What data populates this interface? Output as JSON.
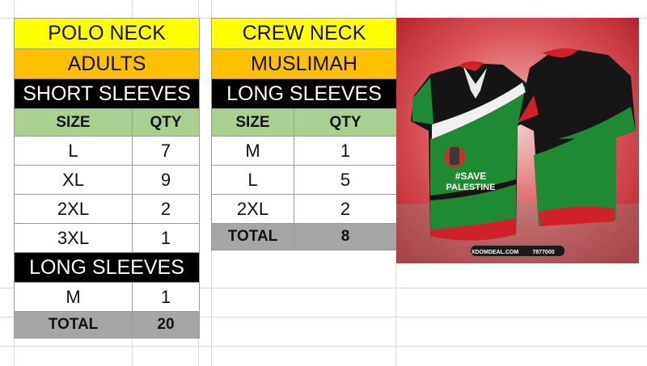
{
  "polo": {
    "neck": "POLO NECK",
    "group": "ADULTS",
    "short_sleeves": {
      "title": "SHORT SLEEVES",
      "header": {
        "size": "SIZE",
        "qty": "QTY"
      },
      "rows": [
        {
          "size": "L",
          "qty": "7"
        },
        {
          "size": "XL",
          "qty": "9"
        },
        {
          "size": "2XL",
          "qty": "2"
        },
        {
          "size": "3XL",
          "qty": "1"
        }
      ]
    },
    "long_sleeves": {
      "title": "LONG SLEEVES",
      "rows": [
        {
          "size": "M",
          "qty": "1"
        }
      ]
    },
    "total": {
      "label": "TOTAL",
      "qty": "20"
    }
  },
  "crew": {
    "neck": "CREW NECK",
    "group": "MUSLIMAH",
    "long_sleeves": {
      "title": "LONG SLEEVES",
      "header": {
        "size": "SIZE",
        "qty": "QTY"
      },
      "rows": [
        {
          "size": "M",
          "qty": "1"
        },
        {
          "size": "L",
          "qty": "5"
        },
        {
          "size": "2XL",
          "qty": "2"
        }
      ]
    },
    "total": {
      "label": "TOTAL",
      "qty": "8"
    }
  },
  "image": {
    "slogan_line1": "#SAVE",
    "slogan_line2": "PALESTINE",
    "footer_site": "XDOMDEAL.COM",
    "footer_phone": "7877000"
  },
  "colors": {
    "yellow": "#ffff00",
    "orange": "#ffc000",
    "header_green": "#a9d08e",
    "total_gray": "#a6a6a6",
    "jersey_green": "#1e8a34",
    "jersey_red": "#d0202a",
    "background_red": "#c4232b"
  }
}
